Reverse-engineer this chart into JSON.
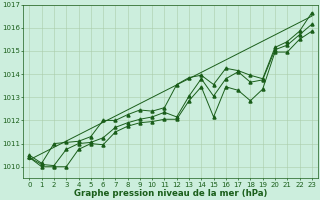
{
  "title": "Graphe pression niveau de la mer (hPa)",
  "hours": [
    0,
    1,
    2,
    3,
    4,
    5,
    6,
    7,
    8,
    9,
    10,
    11,
    12,
    13,
    14,
    15,
    16,
    17,
    18,
    19,
    20,
    21,
    22,
    23
  ],
  "pressure_mean": [
    1010.4,
    1010.1,
    1010.05,
    1010.75,
    1011.0,
    1011.05,
    1011.25,
    1011.7,
    1011.9,
    1012.05,
    1012.15,
    1012.35,
    1012.15,
    1013.05,
    1013.8,
    1013.05,
    1013.8,
    1014.1,
    1013.65,
    1013.75,
    1015.05,
    1015.25,
    1015.7,
    1016.15
  ],
  "pressure_max": [
    1010.5,
    1010.15,
    1011.0,
    1011.05,
    1011.1,
    1011.3,
    1012.0,
    1012.0,
    1012.25,
    1012.45,
    1012.4,
    1012.55,
    1013.55,
    1013.85,
    1013.95,
    1013.55,
    1014.25,
    1014.15,
    1013.95,
    1013.8,
    1015.15,
    1015.4,
    1015.85,
    1016.65
  ],
  "pressure_min": [
    1010.4,
    1010.0,
    1010.0,
    1010.0,
    1010.75,
    1011.0,
    1010.95,
    1011.5,
    1011.75,
    1011.9,
    1011.95,
    1012.05,
    1012.05,
    1012.85,
    1013.45,
    1012.15,
    1013.45,
    1013.3,
    1012.85,
    1013.35,
    1014.95,
    1014.95,
    1015.5,
    1015.85
  ],
  "trend_line": [
    [
      0,
      23
    ],
    [
      1010.3,
      1016.5
    ]
  ],
  "ylim": [
    1009.5,
    1017.0
  ],
  "xlim": [
    -0.5,
    23.5
  ],
  "bg_color": "#cceedd",
  "line_color": "#1a5e1a",
  "grid_color": "#aaccaa",
  "marker": "^",
  "markersize": 2.2,
  "linewidth": 0.7,
  "yticks": [
    1010,
    1011,
    1012,
    1013,
    1014,
    1015,
    1016,
    1017
  ],
  "xticks": [
    0,
    1,
    2,
    3,
    4,
    5,
    6,
    7,
    8,
    9,
    10,
    11,
    12,
    13,
    14,
    15,
    16,
    17,
    18,
    19,
    20,
    21,
    22,
    23
  ],
  "tick_fontsize": 5.0,
  "title_fontsize": 6.2
}
